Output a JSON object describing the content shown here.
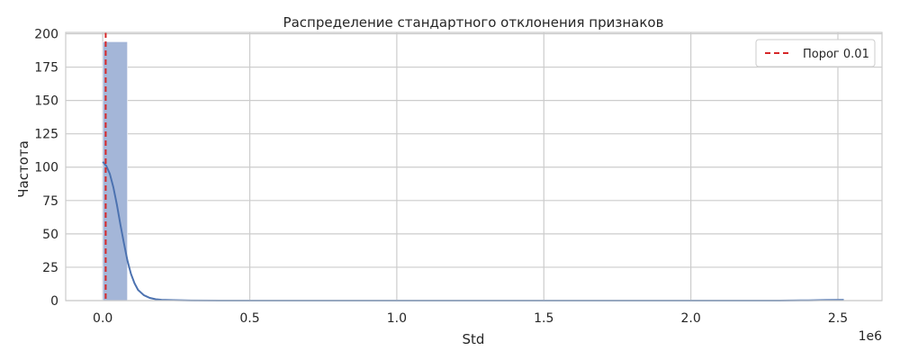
{
  "chart_data": {
    "type": "bar",
    "title": "Распределение стандартного отклонения признаков",
    "xlabel": "Std",
    "ylabel": "Частота",
    "x_offset_label": "1e6",
    "xlim": [
      -0.126,
      2.65
    ],
    "ylim": [
      0,
      201
    ],
    "xticks": [
      0.0,
      0.5,
      1.0,
      1.5,
      2.0,
      2.5
    ],
    "xtick_labels": [
      "0.0",
      "0.5",
      "1.0",
      "1.5",
      "2.0",
      "2.5"
    ],
    "yticks": [
      0,
      25,
      50,
      75,
      100,
      125,
      150,
      175,
      200
    ],
    "ytick_labels": [
      "0",
      "25",
      "50",
      "75",
      "100",
      "125",
      "150",
      "175",
      "200"
    ],
    "grid": true,
    "legend_position": "top-right",
    "bins": [
      {
        "x0": 0.0,
        "x1": 0.084,
        "count": 194
      },
      {
        "x0": 2.436,
        "x1": 2.52,
        "count": 1
      }
    ],
    "kde": {
      "x": [
        0.0,
        0.012,
        0.024,
        0.036,
        0.048,
        0.06,
        0.072,
        0.084,
        0.096,
        0.108,
        0.12,
        0.14,
        0.16,
        0.18,
        0.2,
        0.24,
        0.3,
        0.4,
        0.6,
        1.0,
        1.5,
        2.0,
        2.3,
        2.4,
        2.46,
        2.52
      ],
      "y": [
        104,
        101,
        95,
        85,
        72,
        57,
        43,
        30,
        20,
        13,
        8,
        4,
        2,
        1,
        0.6,
        0.3,
        0.1,
        0,
        0,
        0,
        0,
        0,
        0,
        0.2,
        0.4,
        0.5
      ]
    },
    "threshold": {
      "x": 0.01,
      "label": "Порог 0.01",
      "color": "#d62728"
    },
    "colors": {
      "bars": "#a4b6d8",
      "bar_edge": "#ffffff",
      "kde": "#4c72b0",
      "grid": "#cccccc",
      "frame": "#cccccc"
    }
  }
}
